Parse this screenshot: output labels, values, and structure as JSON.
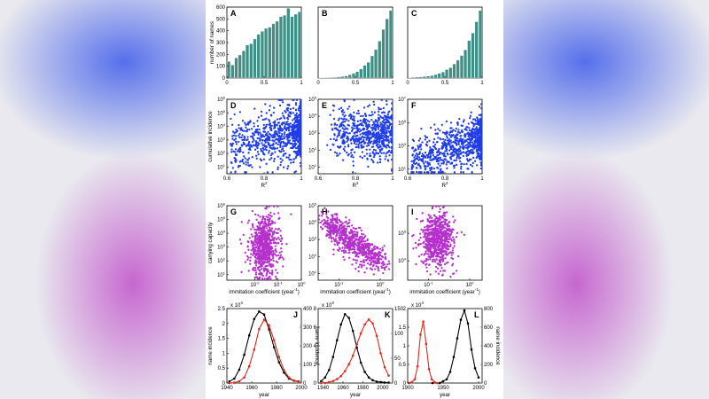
{
  "colors": {
    "histogram": "#3f8f86",
    "scatter_r2": "#1f3de8",
    "scatter_capacity": "#b530cc",
    "black_series": "#000000",
    "red_series": "#e0291d",
    "background_blue": "#3c5aeb",
    "background_purple": "#be46c8"
  },
  "chart_data": [
    {
      "panel": "A",
      "type": "bar",
      "bins": [
        0.025,
        0.075,
        0.125,
        0.175,
        0.225,
        0.275,
        0.325,
        0.375,
        0.425,
        0.475,
        0.525,
        0.575,
        0.625,
        0.675,
        0.725,
        0.775,
        0.825,
        0.875,
        0.925,
        0.975
      ],
      "values": [
        140,
        110,
        170,
        195,
        230,
        280,
        290,
        330,
        370,
        395,
        420,
        430,
        460,
        480,
        520,
        530,
        590,
        520,
        540,
        560
      ],
      "ylabel": "number of names",
      "xlim": [
        0,
        1
      ],
      "ylim": [
        0,
        600
      ],
      "xticks": [
        "0",
        "0.5",
        "1"
      ],
      "yticks": [
        "0",
        "100",
        "200",
        "300",
        "400",
        "500",
        "600"
      ]
    },
    {
      "panel": "B",
      "type": "bar",
      "bins": [
        0.025,
        0.075,
        0.125,
        0.175,
        0.225,
        0.275,
        0.325,
        0.375,
        0.425,
        0.475,
        0.525,
        0.575,
        0.625,
        0.675,
        0.725,
        0.775,
        0.825,
        0.875,
        0.925,
        0.975
      ],
      "values": [
        2,
        2,
        4,
        5,
        7,
        10,
        15,
        20,
        30,
        45,
        60,
        85,
        120,
        150,
        210,
        270,
        350,
        460,
        560,
        640
      ],
      "xlim": [
        0,
        1
      ],
      "xticks": [
        "0",
        "0.5",
        "1"
      ]
    },
    {
      "panel": "C",
      "type": "bar",
      "bins": [
        0.025,
        0.075,
        0.125,
        0.175,
        0.225,
        0.275,
        0.325,
        0.375,
        0.425,
        0.475,
        0.525,
        0.575,
        0.625,
        0.675,
        0.725,
        0.775,
        0.825,
        0.875,
        0.925,
        0.975
      ],
      "values": [
        2,
        3,
        5,
        6,
        8,
        10,
        13,
        18,
        25,
        32,
        45,
        55,
        75,
        95,
        120,
        150,
        200,
        240,
        300,
        360
      ],
      "xlim": [
        0,
        1
      ],
      "xticks": [
        "0",
        "0.5",
        "1"
      ]
    },
    {
      "panel": "D",
      "type": "scatter",
      "generated_points": 900,
      "xlabel": "R",
      "xlabel_sup": "2",
      "ylabel": "cumulative incidence",
      "xlim": [
        0.6,
        1
      ],
      "ylog": true,
      "ylim_exp": [
        0.5,
        6
      ],
      "xticks": [
        "0.6",
        "0.8",
        "1"
      ],
      "ytick_exps": [
        "1",
        "2",
        "3",
        "4",
        "5",
        "6"
      ]
    },
    {
      "panel": "E",
      "type": "scatter",
      "generated_points": 700,
      "xlabel": "R",
      "xlabel_sup": "2",
      "xlim": [
        0.6,
        1
      ],
      "ylog": true,
      "ylim_exp": [
        0.6,
        5
      ],
      "xticks": [
        "0.6",
        "0.8",
        "1"
      ],
      "ytick_exps": [
        "1",
        "2",
        "3",
        "4",
        "5"
      ]
    },
    {
      "panel": "F",
      "type": "scatter",
      "generated_points": 900,
      "xlabel": "R",
      "xlabel_sup": "2",
      "xlim": [
        0.6,
        1
      ],
      "ylog": true,
      "ylim_exp": [
        0.6,
        7
      ],
      "xticks": [
        "0.6",
        "0.8",
        "1"
      ],
      "ytick_exps": [
        "1",
        "3",
        "5",
        "7"
      ]
    },
    {
      "panel": "G",
      "type": "scatter",
      "generated_points": 700,
      "xlabel": "immitation coefficient (year",
      "xlabel_sup": "-1",
      "xlabel_end": ")",
      "ylabel": "carrying capacity",
      "xlog": true,
      "xlim_exp": [
        -3.2,
        0
      ],
      "ylog": true,
      "ylim_exp": [
        0.6,
        6
      ],
      "xtick_exps": [
        "-2",
        "-1",
        "0"
      ],
      "ytick_exps": [
        "1",
        "2",
        "3",
        "4",
        "5",
        "6"
      ]
    },
    {
      "panel": "H",
      "type": "scatter",
      "generated_points": 700,
      "xlabel": "immitation coefficient (year",
      "xlabel_sup": "-1",
      "xlabel_end": ")",
      "xlog": true,
      "xlim_exp": [
        -1.5,
        0.3
      ],
      "ylog": true,
      "ylim_exp": [
        0.6,
        5
      ],
      "xtick_exps": [
        "-1",
        "0"
      ],
      "ytick_exps": [
        "1",
        "2",
        "3",
        "4",
        "5"
      ]
    },
    {
      "panel": "I",
      "type": "scatter",
      "generated_points": 700,
      "xlabel": "immitation coefficient (year",
      "xlabel_sup": "-1",
      "xlabel_end": ")",
      "xlog": true,
      "xlim_exp": [
        -1.5,
        0.3
      ],
      "ylog": true,
      "ylim_exp": [
        3.3,
        6
      ],
      "xtick_exps": [
        "-1",
        "0"
      ],
      "ytick_exps": [
        "4",
        "5"
      ]
    },
    {
      "panel": "J",
      "type": "line",
      "xlabel": "year",
      "ylabel_right": "name incidence",
      "xlim": [
        1940,
        2000
      ],
      "xticks": [
        "1940",
        "1960",
        "1980",
        "2000"
      ],
      "left_scale": "x 10",
      "left_scale_sup": "4",
      "left_ylim": [
        0,
        2.5
      ],
      "left_yticks": [
        "0",
        "0.5",
        "1",
        "1.5",
        "2",
        "2.5"
      ],
      "right_ylim": [
        0,
        400
      ],
      "right_yticks": [
        "0",
        "100",
        "200",
        "300",
        "400"
      ],
      "series": [
        {
          "axis": "left",
          "x": [
            1942,
            1946,
            1950,
            1954,
            1958,
            1962,
            1966,
            1970,
            1974,
            1978,
            1982,
            1986,
            1990,
            1994,
            1998
          ],
          "values": [
            0.05,
            0.15,
            0.45,
            0.95,
            1.6,
            2.15,
            2.4,
            2.3,
            1.8,
            1.2,
            0.7,
            0.35,
            0.15,
            0.08,
            0.05
          ]
        },
        {
          "axis": "right",
          "x": [
            1942,
            1946,
            1950,
            1954,
            1958,
            1962,
            1966,
            1970,
            1974,
            1978,
            1982,
            1986,
            1990,
            1994,
            1998
          ],
          "values": [
            0,
            2,
            10,
            30,
            90,
            180,
            290,
            340,
            310,
            230,
            140,
            70,
            30,
            12,
            5
          ]
        }
      ]
    },
    {
      "panel": "K",
      "type": "line",
      "xlabel": "year",
      "xlim": [
        1935,
        2010
      ],
      "xticks": [
        "1940",
        "1960",
        "1980",
        "2000"
      ],
      "left_scale": "x 10",
      "left_scale_sup": "3",
      "left_ylim": [
        0,
        8
      ],
      "left_yticks": [
        "0",
        "2",
        "4",
        "6",
        "8"
      ],
      "right_ylim": [
        0,
        150
      ],
      "right_yticks": [
        "0",
        "50",
        "100",
        "150"
      ],
      "series": [
        {
          "axis": "left",
          "x": [
            1938,
            1942,
            1946,
            1950,
            1954,
            1958,
            1962,
            1966,
            1970,
            1974,
            1978,
            1982,
            1986,
            1990,
            1994,
            1998,
            2002,
            2006
          ],
          "values": [
            0.2,
            0.6,
            1.4,
            2.8,
            4.6,
            6.3,
            7.4,
            7.0,
            5.6,
            3.8,
            2.2,
            1.2,
            0.6,
            0.3,
            0.15,
            0.1,
            0.05,
            0.05
          ]
        },
        {
          "axis": "right",
          "x": [
            1938,
            1942,
            1946,
            1950,
            1954,
            1958,
            1962,
            1966,
            1970,
            1974,
            1978,
            1982,
            1986,
            1990,
            1994,
            1998,
            2002,
            2006
          ],
          "values": [
            0,
            0,
            2,
            4,
            8,
            14,
            24,
            38,
            55,
            78,
            100,
            118,
            128,
            120,
            95,
            60,
            32,
            15
          ]
        }
      ]
    },
    {
      "panel": "L",
      "type": "line",
      "xlabel": "year",
      "ylabel_right": "name incidence",
      "xlim": [
        1900,
        2005
      ],
      "xticks": [
        "1900",
        "1950",
        "2000"
      ],
      "left_scale": "x 10",
      "left_scale_sup": "4",
      "left_ylim": [
        0,
        2
      ],
      "left_yticks": [
        "0",
        "0.5",
        "1",
        "1.5",
        "2"
      ],
      "right_ylim": [
        0,
        800
      ],
      "right_yticks": [
        "0",
        "200",
        "400",
        "600",
        "800"
      ],
      "series": [
        {
          "axis": "left",
          "x": [
            1935,
            1945,
            1950,
            1955,
            1960,
            1965,
            1970,
            1975,
            1980,
            1985,
            1990,
            1995,
            2000
          ],
          "values": [
            0,
            0,
            0.05,
            0.1,
            0.3,
            0.7,
            1.2,
            1.7,
            1.95,
            1.6,
            0.9,
            0.4,
            0.15
          ]
        },
        {
          "axis": "right",
          "x": [
            1902,
            1906,
            1910,
            1914,
            1918,
            1922,
            1926,
            1930,
            1934,
            1938,
            1942
          ],
          "values": [
            0,
            10,
            40,
            180,
            520,
            660,
            420,
            150,
            40,
            10,
            0
          ]
        }
      ]
    }
  ]
}
